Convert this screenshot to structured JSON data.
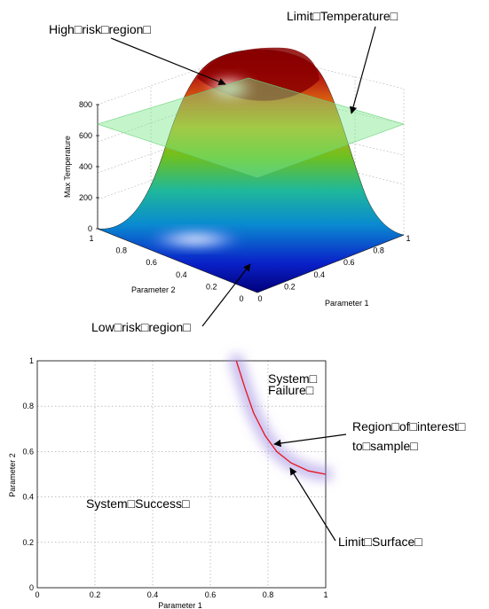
{
  "surface_plot": {
    "type": "surface3d",
    "zlabel": "Max Temperature",
    "xlabel": "Parameter 1",
    "ylabel": "Parameter 2",
    "z_ticks": [
      "0",
      "200",
      "400",
      "600",
      "800"
    ],
    "x_ticks": [
      "0",
      "0.2",
      "0.4",
      "0.6",
      "0.8",
      "1"
    ],
    "y_ticks": [
      "0",
      "0.2",
      "0.4",
      "0.6",
      "0.8",
      "1"
    ],
    "limit_plane_value": 700,
    "zlim": [
      0,
      800
    ],
    "colormap": "jet",
    "annotations": {
      "high_risk": "High□risk□region□",
      "limit_temp": "Limit□Temperature□",
      "low_risk": "Low□risk□region□"
    }
  },
  "chart_data": {
    "type": "line",
    "xlabel": "Parameter 1",
    "ylabel": "Parameter 2",
    "xlim": [
      0,
      1
    ],
    "ylim": [
      0,
      1
    ],
    "x_ticks": [
      "0",
      "0.2",
      "0.4",
      "0.6",
      "0.8",
      "1"
    ],
    "y_ticks": [
      "0",
      "0.2",
      "0.4",
      "0.6",
      "0.8",
      "1"
    ],
    "grid": true,
    "series": [
      {
        "color": "#e8141c",
        "x": [
          0.69,
          0.72,
          0.75,
          0.79,
          0.83,
          0.88,
          0.94,
          1.0
        ],
        "y": [
          1.0,
          0.88,
          0.77,
          0.67,
          0.6,
          0.55,
          0.515,
          0.5
        ]
      }
    ],
    "annotations": {
      "system_failure_line1": "System□",
      "system_failure_line2": "Failure□",
      "region_line1": "Region□of□interest□",
      "region_line2": "to□sample□",
      "system_success": "System□Success□",
      "limit_surface": "Limit□Surface□"
    }
  }
}
